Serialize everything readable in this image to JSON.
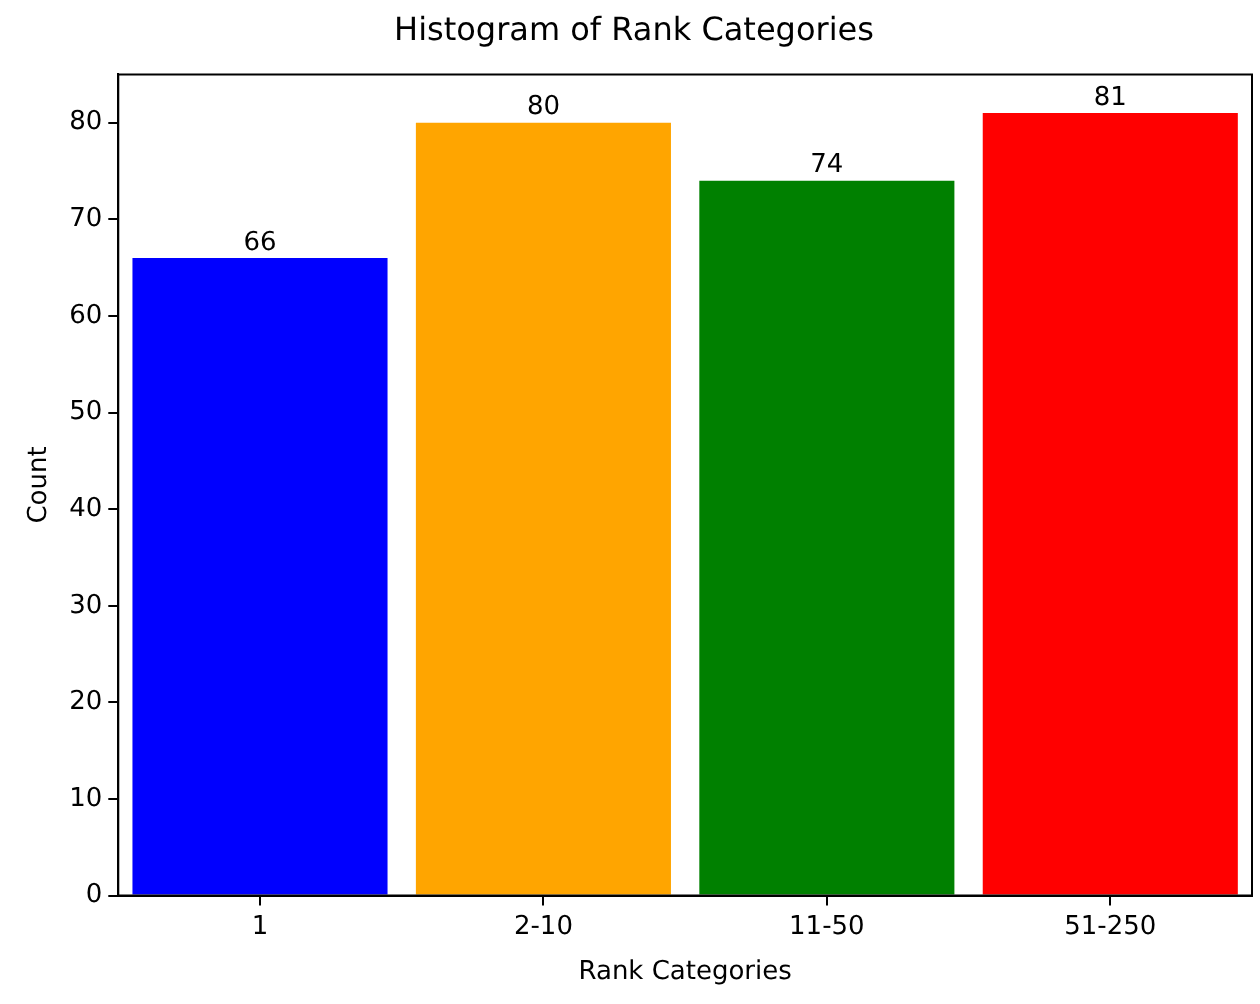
{
  "chart_data": {
    "type": "bar",
    "title": "Histogram of Rank Categories",
    "xlabel": "Rank Categories",
    "ylabel": "Count",
    "categories": [
      "1",
      "2-10",
      "11-50",
      "51-250"
    ],
    "values": [
      66,
      80,
      74,
      81
    ],
    "colors": [
      "#0000ff",
      "#ffa500",
      "#008000",
      "#ff0000"
    ],
    "ylim": [
      0,
      85
    ],
    "yticks": [
      0,
      10,
      20,
      30,
      40,
      50,
      60,
      70,
      80
    ],
    "grid": false,
    "data_labels": true
  }
}
